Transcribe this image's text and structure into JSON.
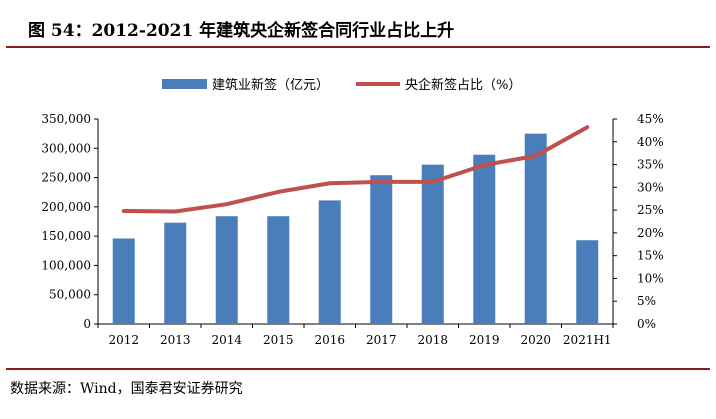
{
  "header": {
    "title": "图 54：2012-2021 年建筑央企新签合同行业占比上升"
  },
  "footer": {
    "source": "数据来源：Wind，国泰君安证券研究"
  },
  "colors": {
    "bar": "#4a7ebb",
    "line": "#c0504d",
    "rule": "#8c1c1c"
  },
  "chart_data": {
    "type": "bar",
    "categories": [
      "2012",
      "2013",
      "2014",
      "2015",
      "2016",
      "2017",
      "2018",
      "2019",
      "2020",
      "2021H1"
    ],
    "series": [
      {
        "name": "建筑业新签（亿元）",
        "type": "bar",
        "axis": "left",
        "values": [
          146000,
          173000,
          184000,
          184000,
          211000,
          254000,
          272000,
          289000,
          325000,
          143000
        ]
      },
      {
        "name": "央企新签占比（%）",
        "type": "line",
        "axis": "right",
        "values": [
          24.8,
          24.7,
          26.3,
          29.0,
          30.9,
          31.2,
          31.2,
          34.9,
          36.9,
          43.2
        ]
      }
    ],
    "y_left": {
      "lim": [
        0,
        350000
      ],
      "ticks": [
        "0",
        "50,000",
        "100,000",
        "150,000",
        "200,000",
        "250,000",
        "300,000",
        "350,000"
      ]
    },
    "y_right": {
      "lim": [
        0,
        45
      ],
      "ticks": [
        "0%",
        "5%",
        "10%",
        "15%",
        "20%",
        "25%",
        "30%",
        "35%",
        "40%",
        "45%"
      ]
    },
    "grid": false,
    "legend_position": "top-center"
  }
}
